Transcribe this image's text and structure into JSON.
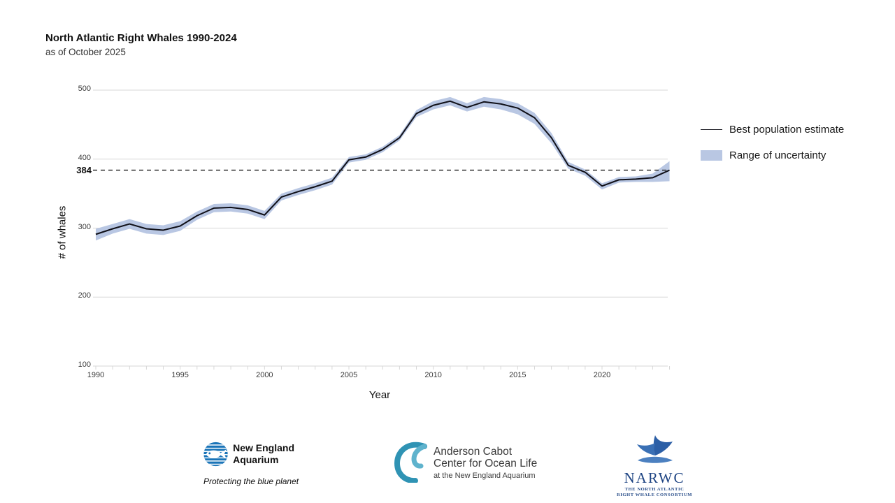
{
  "colors": {
    "line": "#101018",
    "band": "#b9c7e3",
    "grid": "#d7d7d7",
    "dashed": "#1a1a1a",
    "nea_blue": "#1a74b8",
    "acc_teal": "#2f93b4",
    "acc_teal_light": "#5fb3cd",
    "narwc_blue": "#2c5fa6",
    "narwc_blue_mid": "#3a70b5",
    "narwc_blue_light": "#4c80c0"
  },
  "chart_data": {
    "type": "line",
    "title": "North Atlantic Right Whales 1990-2024",
    "subtitle": "as of October 2025",
    "xlabel": "Year",
    "ylabel": "# of whales",
    "xlim": [
      1990,
      2024
    ],
    "ylim": [
      100,
      500
    ],
    "xticks": [
      1990,
      1995,
      2000,
      2005,
      2010,
      2015,
      2020
    ],
    "yticks": [
      500,
      400,
      300,
      200,
      100
    ],
    "grid": true,
    "legend_position": "right",
    "years": [
      1990,
      1991,
      1992,
      1993,
      1994,
      1995,
      1996,
      1997,
      1998,
      1999,
      2000,
      2001,
      2002,
      2003,
      2004,
      2005,
      2006,
      2007,
      2008,
      2009,
      2010,
      2011,
      2012,
      2013,
      2014,
      2015,
      2016,
      2017,
      2018,
      2019,
      2020,
      2021,
      2022,
      2023,
      2024
    ],
    "series": [
      {
        "name": "Best population estimate",
        "values": [
          291,
          299,
          306,
          299,
          297,
          303,
          318,
          329,
          330,
          327,
          319,
          345,
          353,
          360,
          368,
          399,
          403,
          414,
          431,
          466,
          478,
          484,
          475,
          483,
          480,
          474,
          460,
          431,
          391,
          381,
          361,
          370,
          371,
          373,
          384
        ]
      },
      {
        "name": "Range of uncertainty",
        "lower": [
          282,
          292,
          299,
          292,
          290,
          296,
          312,
          323,
          324,
          321,
          313,
          340,
          348,
          355,
          363,
          395,
          399,
          410,
          427,
          461,
          472,
          478,
          469,
          476,
          472,
          465,
          451,
          423,
          386,
          376,
          356,
          366,
          367,
          367,
          368
        ],
        "upper": [
          299,
          306,
          313,
          306,
          304,
          310,
          324,
          335,
          336,
          333,
          325,
          350,
          358,
          365,
          373,
          403,
          407,
          418,
          435,
          471,
          484,
          490,
          481,
          490,
          487,
          481,
          467,
          438,
          396,
          385,
          365,
          374,
          375,
          379,
          397
        ]
      }
    ],
    "annotation": {
      "value": 384,
      "label": "384",
      "style": "dashed-horizontal-line"
    }
  },
  "footer": {
    "nea": {
      "name_line1": "New England",
      "name_line2": "Aquarium",
      "tagline": "Protecting the blue planet"
    },
    "acc": {
      "line1": "Anderson Cabot",
      "line2": "Center for Ocean Life",
      "line3": "at the New England Aquarium"
    },
    "narwc": {
      "acronym": "NARWC",
      "line1": "THE NORTH ATLANTIC",
      "line2": "RIGHT WHALE CONSORTIUM"
    }
  }
}
